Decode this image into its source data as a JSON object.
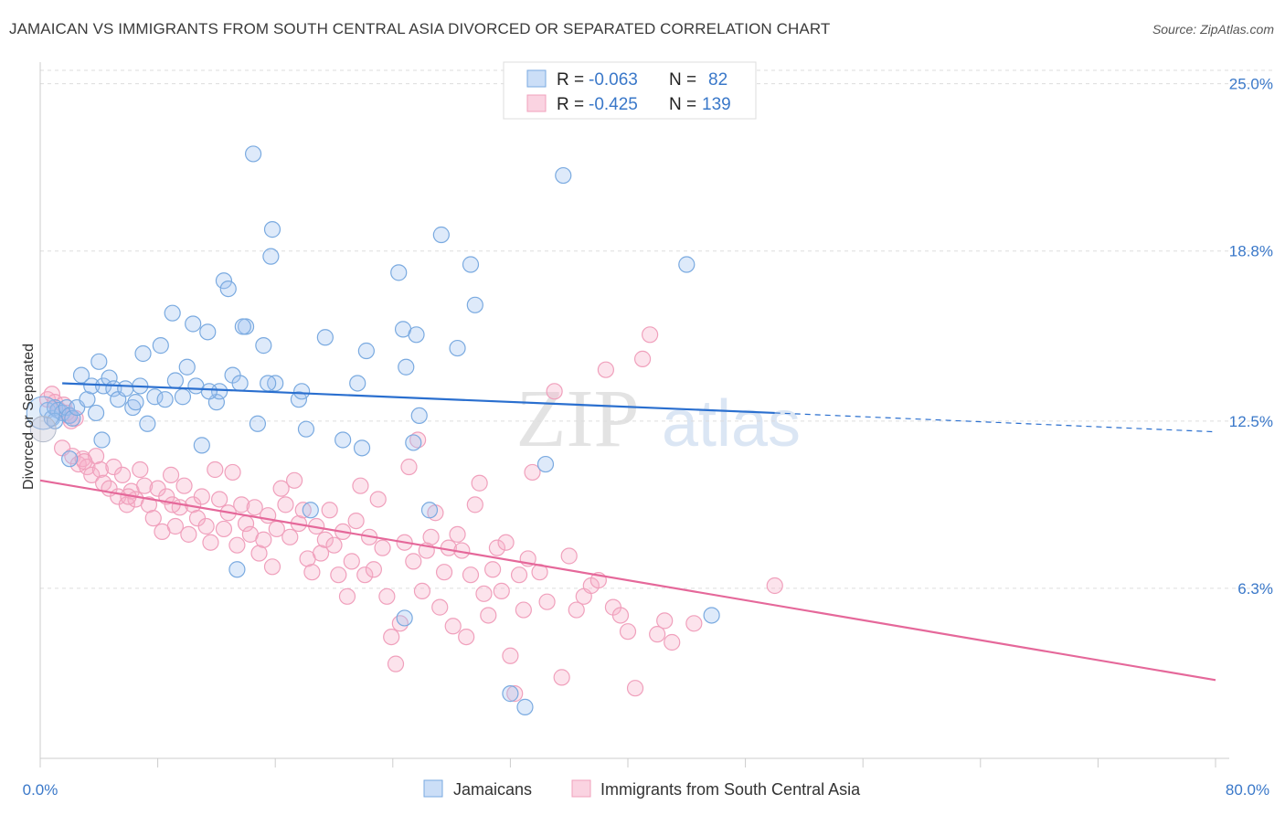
{
  "title": "JAMAICAN VS IMMIGRANTS FROM SOUTH CENTRAL ASIA DIVORCED OR SEPARATED CORRELATION CHART",
  "source": "Source: ZipAtlas.com",
  "watermark": {
    "zip": "ZIP",
    "atlas": "atlas"
  },
  "colors": {
    "blue": "#7aaae0",
    "blue_fill": "rgba(160,195,240,0.35)",
    "blue_line": "#2a6fcf",
    "pink": "#f0a0bc",
    "pink_fill": "rgba(245,175,200,0.35)",
    "pink_line": "#e5689a",
    "axis_text": "#3a78c9",
    "grid": "#dddddd"
  },
  "legend_top": {
    "rows": [
      {
        "r_label": "R =",
        "r_value": "-0.063",
        "n_label": "N =",
        "n_value": "82"
      },
      {
        "r_label": "R =",
        "r_value": "-0.425",
        "n_label": "N =",
        "n_value": "139"
      }
    ]
  },
  "chart_data": {
    "type": "scatter",
    "ylabel": "Divorced or Separated",
    "xlim": [
      0,
      80
    ],
    "ylim": [
      0,
      25.8
    ],
    "x_tick_labels": [
      "0.0%",
      "80.0%"
    ],
    "y_ticks": [
      6.3,
      12.5,
      18.8,
      25.0
    ],
    "y_tick_labels": [
      "6.3%",
      "12.5%",
      "18.8%",
      "25.0%"
    ],
    "grid": "horizontal dashed",
    "legend_position": "bottom-center",
    "series": [
      {
        "name": "Jamaicans",
        "trend": {
          "x0": 1.5,
          "y0": 13.9,
          "x1": 50,
          "y1": 12.8,
          "dash_to_x": 80,
          "dash_to_y": 12.1
        },
        "points": [
          [
            0.5,
            12.9
          ],
          [
            0.8,
            12.6
          ],
          [
            1.0,
            13.0
          ],
          [
            1.2,
            12.9
          ],
          [
            1.5,
            12.8
          ],
          [
            1.8,
            13.0
          ],
          [
            2.0,
            12.7
          ],
          [
            2.2,
            12.6
          ],
          [
            2.5,
            13.0
          ],
          [
            1.0,
            12.5
          ],
          [
            2.8,
            14.2
          ],
          [
            3.2,
            13.3
          ],
          [
            3.5,
            13.8
          ],
          [
            3.8,
            12.8
          ],
          [
            4.0,
            14.7
          ],
          [
            4.3,
            13.8
          ],
          [
            4.7,
            14.1
          ],
          [
            5.0,
            13.7
          ],
          [
            5.3,
            13.3
          ],
          [
            5.8,
            13.7
          ],
          [
            6.3,
            13.0
          ],
          [
            6.5,
            13.2
          ],
          [
            6.8,
            13.8
          ],
          [
            7.0,
            15.0
          ],
          [
            7.3,
            12.4
          ],
          [
            7.8,
            13.4
          ],
          [
            8.2,
            15.3
          ],
          [
            8.5,
            13.3
          ],
          [
            9.0,
            16.5
          ],
          [
            9.2,
            14.0
          ],
          [
            9.7,
            13.4
          ],
          [
            10.0,
            14.5
          ],
          [
            10.4,
            16.1
          ],
          [
            10.6,
            13.8
          ],
          [
            11.0,
            11.6
          ],
          [
            11.4,
            15.8
          ],
          [
            12.0,
            13.2
          ],
          [
            12.2,
            13.6
          ],
          [
            12.5,
            17.7
          ],
          [
            12.8,
            17.4
          ],
          [
            13.1,
            14.2
          ],
          [
            14.0,
            16.0
          ],
          [
            13.8,
            16.0
          ],
          [
            14.5,
            22.4
          ],
          [
            14.8,
            12.4
          ],
          [
            15.7,
            18.6
          ],
          [
            15.2,
            15.3
          ],
          [
            15.8,
            19.6
          ],
          [
            16.0,
            13.9
          ],
          [
            13.6,
            13.9
          ],
          [
            17.6,
            13.3
          ],
          [
            17.8,
            13.6
          ],
          [
            18.1,
            12.2
          ],
          [
            18.4,
            9.2
          ],
          [
            15.5,
            13.9
          ],
          [
            19.4,
            15.6
          ],
          [
            20.6,
            11.8
          ],
          [
            21.6,
            13.9
          ],
          [
            21.9,
            11.5
          ],
          [
            22.2,
            15.1
          ],
          [
            24.4,
            18.0
          ],
          [
            24.7,
            15.9
          ],
          [
            24.9,
            14.5
          ],
          [
            25.4,
            11.7
          ],
          [
            25.6,
            15.7
          ],
          [
            25.8,
            12.7
          ],
          [
            26.5,
            9.2
          ],
          [
            27.3,
            19.4
          ],
          [
            28.4,
            15.2
          ],
          [
            29.3,
            18.3
          ],
          [
            29.6,
            16.8
          ],
          [
            34.4,
            10.9
          ],
          [
            35.6,
            21.6
          ],
          [
            44.0,
            18.3
          ],
          [
            45.7,
            5.3
          ],
          [
            24.8,
            5.2
          ],
          [
            32.0,
            2.4
          ],
          [
            33.0,
            1.9
          ],
          [
            13.4,
            7.0
          ],
          [
            4.2,
            11.8
          ],
          [
            2.0,
            11.1
          ],
          [
            11.5,
            13.6
          ]
        ]
      },
      {
        "name": "Immigrants from South Central Asia",
        "trend": {
          "x0": 0,
          "y0": 10.3,
          "x1": 80,
          "y1": 2.9
        },
        "points": [
          [
            0.5,
            13.3
          ],
          [
            0.8,
            13.5
          ],
          [
            1.0,
            13.2
          ],
          [
            1.3,
            12.9
          ],
          [
            1.6,
            13.1
          ],
          [
            1.9,
            12.7
          ],
          [
            2.1,
            12.5
          ],
          [
            2.4,
            12.6
          ],
          [
            1.5,
            11.5
          ],
          [
            2.2,
            11.2
          ],
          [
            2.6,
            10.9
          ],
          [
            2.9,
            11.1
          ],
          [
            3.2,
            10.8
          ],
          [
            3.5,
            10.5
          ],
          [
            3.8,
            11.2
          ],
          [
            4.1,
            10.7
          ],
          [
            4.3,
            10.2
          ],
          [
            4.7,
            10.0
          ],
          [
            5.0,
            10.8
          ],
          [
            5.3,
            9.7
          ],
          [
            5.6,
            10.5
          ],
          [
            5.9,
            9.4
          ],
          [
            6.2,
            9.9
          ],
          [
            6.5,
            9.6
          ],
          [
            6.8,
            10.7
          ],
          [
            7.1,
            10.1
          ],
          [
            7.4,
            9.4
          ],
          [
            7.7,
            8.9
          ],
          [
            8.0,
            10.0
          ],
          [
            8.3,
            8.4
          ],
          [
            8.6,
            9.7
          ],
          [
            8.9,
            10.5
          ],
          [
            9.2,
            8.6
          ],
          [
            9.5,
            9.3
          ],
          [
            9.8,
            10.1
          ],
          [
            10.1,
            8.3
          ],
          [
            10.4,
            9.4
          ],
          [
            10.7,
            8.9
          ],
          [
            11.0,
            9.7
          ],
          [
            11.3,
            8.6
          ],
          [
            11.6,
            8.0
          ],
          [
            11.9,
            10.7
          ],
          [
            12.2,
            9.6
          ],
          [
            12.5,
            8.5
          ],
          [
            12.8,
            9.1
          ],
          [
            13.1,
            10.6
          ],
          [
            13.4,
            7.9
          ],
          [
            13.7,
            9.4
          ],
          [
            14.0,
            8.7
          ],
          [
            14.3,
            8.3
          ],
          [
            14.6,
            9.3
          ],
          [
            14.9,
            7.6
          ],
          [
            15.2,
            8.1
          ],
          [
            15.5,
            9.0
          ],
          [
            15.8,
            7.1
          ],
          [
            16.1,
            8.5
          ],
          [
            16.4,
            10.0
          ],
          [
            16.7,
            9.4
          ],
          [
            17.0,
            8.2
          ],
          [
            17.3,
            10.3
          ],
          [
            17.6,
            8.7
          ],
          [
            17.9,
            9.2
          ],
          [
            18.2,
            7.4
          ],
          [
            18.5,
            6.9
          ],
          [
            18.8,
            8.6
          ],
          [
            19.1,
            7.6
          ],
          [
            19.4,
            8.1
          ],
          [
            19.7,
            9.2
          ],
          [
            20.0,
            7.9
          ],
          [
            20.3,
            6.8
          ],
          [
            20.6,
            8.4
          ],
          [
            20.9,
            6.0
          ],
          [
            21.2,
            7.3
          ],
          [
            21.5,
            8.8
          ],
          [
            21.8,
            10.1
          ],
          [
            22.1,
            6.8
          ],
          [
            22.4,
            8.2
          ],
          [
            22.7,
            7.0
          ],
          [
            23.0,
            9.6
          ],
          [
            23.3,
            7.8
          ],
          [
            23.6,
            6.0
          ],
          [
            23.9,
            4.5
          ],
          [
            24.2,
            3.5
          ],
          [
            24.5,
            5.0
          ],
          [
            24.8,
            8.0
          ],
          [
            25.1,
            10.8
          ],
          [
            25.4,
            7.3
          ],
          [
            25.7,
            11.8
          ],
          [
            26.0,
            6.2
          ],
          [
            26.3,
            7.7
          ],
          [
            26.6,
            8.2
          ],
          [
            26.9,
            9.1
          ],
          [
            27.2,
            5.6
          ],
          [
            27.5,
            6.9
          ],
          [
            27.8,
            7.8
          ],
          [
            28.1,
            4.9
          ],
          [
            28.4,
            8.3
          ],
          [
            28.7,
            7.7
          ],
          [
            29.0,
            4.5
          ],
          [
            29.3,
            6.8
          ],
          [
            29.6,
            9.4
          ],
          [
            29.9,
            10.2
          ],
          [
            30.2,
            6.1
          ],
          [
            30.5,
            5.3
          ],
          [
            30.8,
            7.0
          ],
          [
            31.1,
            7.8
          ],
          [
            31.4,
            6.2
          ],
          [
            31.7,
            8.0
          ],
          [
            32.0,
            3.8
          ],
          [
            32.3,
            2.4
          ],
          [
            32.6,
            6.8
          ],
          [
            32.9,
            5.5
          ],
          [
            33.2,
            7.4
          ],
          [
            33.5,
            10.6
          ],
          [
            34.0,
            6.9
          ],
          [
            34.5,
            5.8
          ],
          [
            35.0,
            13.6
          ],
          [
            35.5,
            3.0
          ],
          [
            36.0,
            7.5
          ],
          [
            36.5,
            5.5
          ],
          [
            37.0,
            6.0
          ],
          [
            37.5,
            6.4
          ],
          [
            38.0,
            6.6
          ],
          [
            38.5,
            14.4
          ],
          [
            39.0,
            5.6
          ],
          [
            39.5,
            5.3
          ],
          [
            40.0,
            4.7
          ],
          [
            40.5,
            2.6
          ],
          [
            41.0,
            14.8
          ],
          [
            41.5,
            15.7
          ],
          [
            42.0,
            4.6
          ],
          [
            42.5,
            5.1
          ],
          [
            43.0,
            4.3
          ],
          [
            44.5,
            5.0
          ],
          [
            50.0,
            6.4
          ],
          [
            1.8,
            12.8
          ],
          [
            3.0,
            11.0
          ],
          [
            6.0,
            9.7
          ],
          [
            9.0,
            9.4
          ]
        ]
      }
    ]
  }
}
